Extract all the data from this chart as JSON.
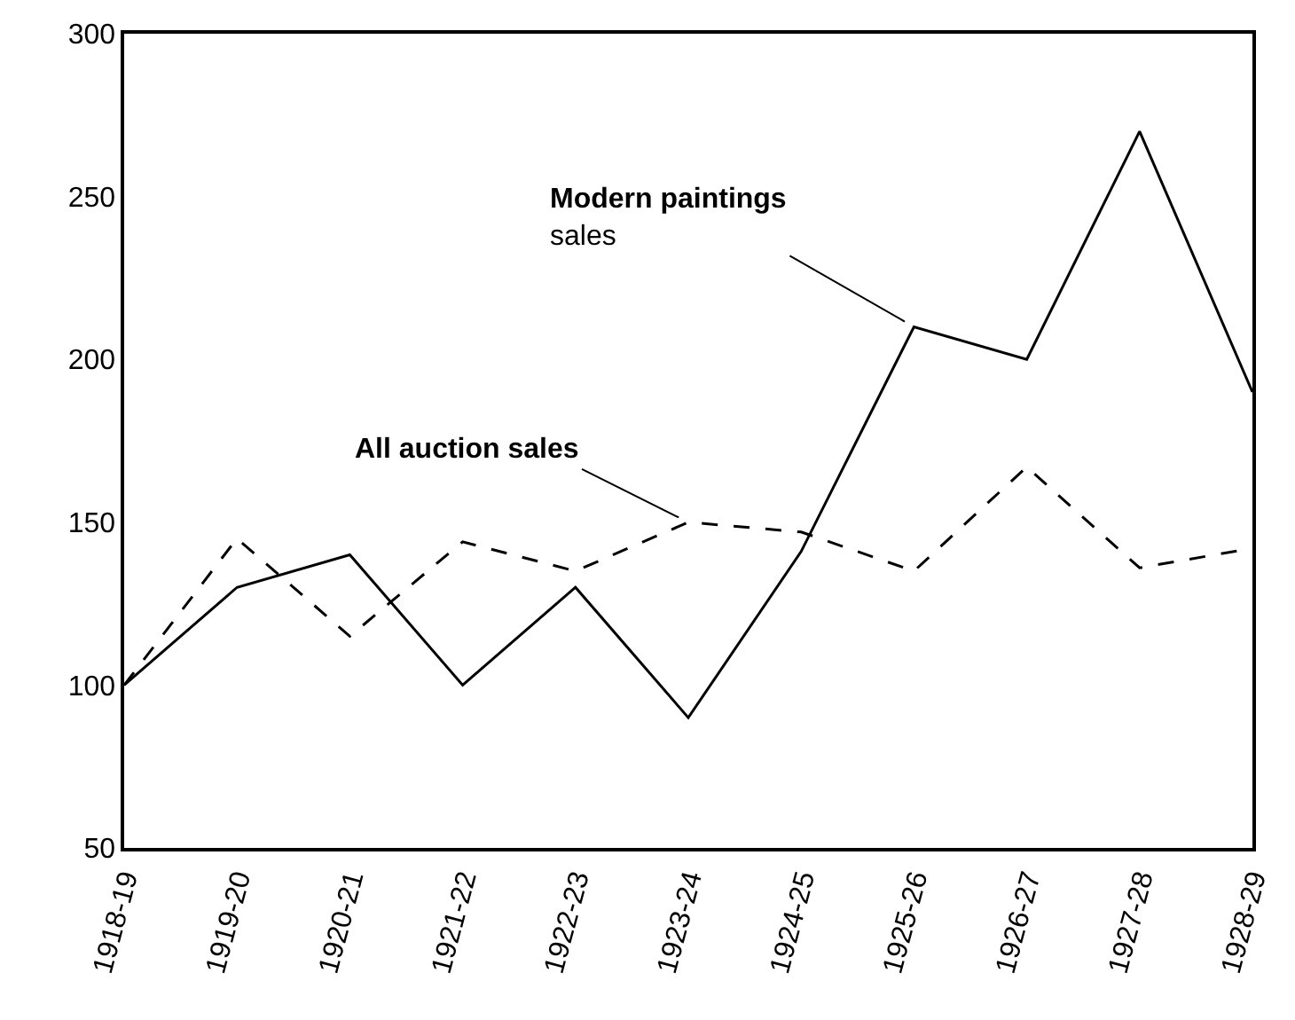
{
  "chart_data": {
    "type": "line",
    "categories": [
      "1918-19",
      "1919-20",
      "1920-21",
      "1921-22",
      "1922-23",
      "1923-24",
      "1924-25",
      "1925-26",
      "1926-27",
      "1927-28",
      "1928-29"
    ],
    "series": [
      {
        "color": "#000000",
        "line_style": "solid",
        "values": [
          100,
          130,
          140,
          100,
          130,
          90,
          141,
          210,
          200,
          270,
          190
        ]
      },
      {
        "color": "#000000",
        "line_style": "dashed",
        "values": [
          100,
          145,
          115,
          144,
          135,
          150,
          147,
          135,
          167,
          136,
          142
        ]
      }
    ],
    "annotations": [
      {
        "text": "Modern paintings\nsales",
        "x": "1925-26",
        "y": 210
      },
      {
        "text": "All auction sales",
        "x": "1923-24",
        "y": 150
      }
    ],
    "ylim": [
      50,
      300
    ],
    "yticks": [
      50,
      100,
      150,
      200,
      250,
      300
    ],
    "legend": false,
    "marker": "none"
  }
}
